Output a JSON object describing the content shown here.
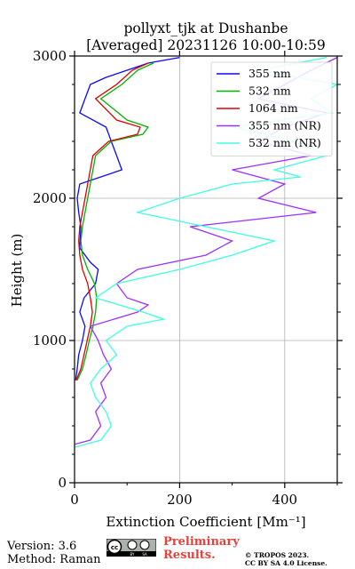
{
  "chart_data": {
    "type": "line",
    "title": [
      "pollyxt_tjk at Dushanbe",
      "[Averaged] 20231126 10:00-10:59"
    ],
    "xlabel": "Extinction Coefficient [Mm⁻¹]",
    "ylabel": "Height (m)",
    "xlim": [
      0,
      500
    ],
    "ylim": [
      0,
      3000
    ],
    "x_ticks": [
      "0",
      "200",
      "400"
    ],
    "y_ticks": [
      "0",
      "1000",
      "2000",
      "3000"
    ],
    "grid": true,
    "legend_position": "top-right",
    "series": [
      {
        "name": "355 nm",
        "color": "#0a0aff",
        "points": [
          [
            2,
            720
          ],
          [
            5,
            800
          ],
          [
            8,
            900
          ],
          [
            15,
            1000
          ],
          [
            20,
            1100
          ],
          [
            10,
            1200
          ],
          [
            18,
            1300
          ],
          [
            40,
            1400
          ],
          [
            45,
            1500
          ],
          [
            30,
            1550
          ],
          [
            10,
            1650
          ],
          [
            12,
            1800
          ],
          [
            8,
            1900
          ],
          [
            5,
            2000
          ],
          [
            10,
            2100
          ],
          [
            90,
            2200
          ],
          [
            80,
            2300
          ],
          [
            70,
            2400
          ],
          [
            60,
            2500
          ],
          [
            10,
            2600
          ],
          [
            20,
            2700
          ],
          [
            30,
            2800
          ],
          [
            60,
            2850
          ],
          [
            100,
            2900
          ],
          [
            140,
            2950
          ],
          [
            200,
            2990
          ]
        ]
      },
      {
        "name": "532 nm",
        "color": "#00b300",
        "points": [
          [
            5,
            720
          ],
          [
            15,
            800
          ],
          [
            22,
            900
          ],
          [
            28,
            1000
          ],
          [
            35,
            1100
          ],
          [
            40,
            1200
          ],
          [
            42,
            1300
          ],
          [
            38,
            1400
          ],
          [
            25,
            1500
          ],
          [
            15,
            1600
          ],
          [
            12,
            1700
          ],
          [
            15,
            1800
          ],
          [
            20,
            1900
          ],
          [
            40,
            2300
          ],
          [
            70,
            2400
          ],
          [
            130,
            2450
          ],
          [
            140,
            2500
          ],
          [
            100,
            2550
          ],
          [
            50,
            2700
          ],
          [
            90,
            2800
          ],
          [
            120,
            2900
          ],
          [
            150,
            2950
          ]
        ]
      },
      {
        "name": "1064 nm",
        "color": "#e00000",
        "points": [
          [
            3,
            720
          ],
          [
            12,
            800
          ],
          [
            18,
            900
          ],
          [
            24,
            1000
          ],
          [
            30,
            1100
          ],
          [
            34,
            1200
          ],
          [
            30,
            1300
          ],
          [
            25,
            1400
          ],
          [
            15,
            1500
          ],
          [
            10,
            1600
          ],
          [
            8,
            1700
          ],
          [
            10,
            1800
          ],
          [
            15,
            1900
          ],
          [
            35,
            2300
          ],
          [
            65,
            2400
          ],
          [
            120,
            2450
          ],
          [
            125,
            2500
          ],
          [
            80,
            2550
          ],
          [
            40,
            2700
          ],
          [
            80,
            2800
          ],
          [
            110,
            2900
          ],
          [
            140,
            2950
          ]
        ]
      },
      {
        "name": "355 nm (NR)",
        "color": "#9b30ff",
        "points": [
          [
            0,
            270
          ],
          [
            30,
            300
          ],
          [
            50,
            400
          ],
          [
            40,
            500
          ],
          [
            60,
            600
          ],
          [
            50,
            700
          ],
          [
            70,
            800
          ],
          [
            55,
            900
          ],
          [
            45,
            1000
          ],
          [
            30,
            1100
          ],
          [
            120,
            1200
          ],
          [
            140,
            1250
          ],
          [
            100,
            1300
          ],
          [
            80,
            1400
          ],
          [
            120,
            1500
          ],
          [
            250,
            1600
          ],
          [
            300,
            1700
          ],
          [
            220,
            1800
          ],
          [
            460,
            1900
          ],
          [
            350,
            2000
          ],
          [
            400,
            2100
          ],
          [
            300,
            2200
          ],
          [
            450,
            2300
          ],
          [
            350,
            2400
          ],
          [
            400,
            2500
          ],
          [
            480,
            2600
          ],
          [
            350,
            2700
          ],
          [
            400,
            2800
          ],
          [
            450,
            2900
          ],
          [
            500,
            2990
          ]
        ]
      },
      {
        "name": "532 nm (NR)",
        "color": "#40ffe0",
        "points": [
          [
            0,
            250
          ],
          [
            50,
            300
          ],
          [
            70,
            400
          ],
          [
            60,
            500
          ],
          [
            40,
            600
          ],
          [
            30,
            700
          ],
          [
            50,
            800
          ],
          [
            80,
            900
          ],
          [
            60,
            1000
          ],
          [
            100,
            1100
          ],
          [
            170,
            1150
          ],
          [
            130,
            1200
          ],
          [
            40,
            1300
          ],
          [
            80,
            1400
          ],
          [
            200,
            1500
          ],
          [
            300,
            1600
          ],
          [
            380,
            1700
          ],
          [
            250,
            1800
          ],
          [
            120,
            1900
          ],
          [
            200,
            2000
          ],
          [
            300,
            2100
          ],
          [
            430,
            2150
          ],
          [
            380,
            2200
          ],
          [
            480,
            2300
          ],
          [
            420,
            2400
          ],
          [
            300,
            2500
          ],
          [
            490,
            2600
          ],
          [
            450,
            2700
          ],
          [
            500,
            2800
          ],
          [
            350,
            2900
          ],
          [
            480,
            2990
          ]
        ]
      }
    ]
  },
  "footer": {
    "version": "Version: 3.6",
    "method": "Method: Raman",
    "preliminary_1": "Preliminary",
    "preliminary_2": "Results.",
    "copyright_1": "© TROPOS 2023.",
    "copyright_2": "CC BY SA 4.0 License.",
    "license_badge_text": [
      "cc",
      "BY",
      "SA"
    ]
  },
  "colors": {
    "grid": "#b0b0b0",
    "prelim": "#e8413c"
  }
}
